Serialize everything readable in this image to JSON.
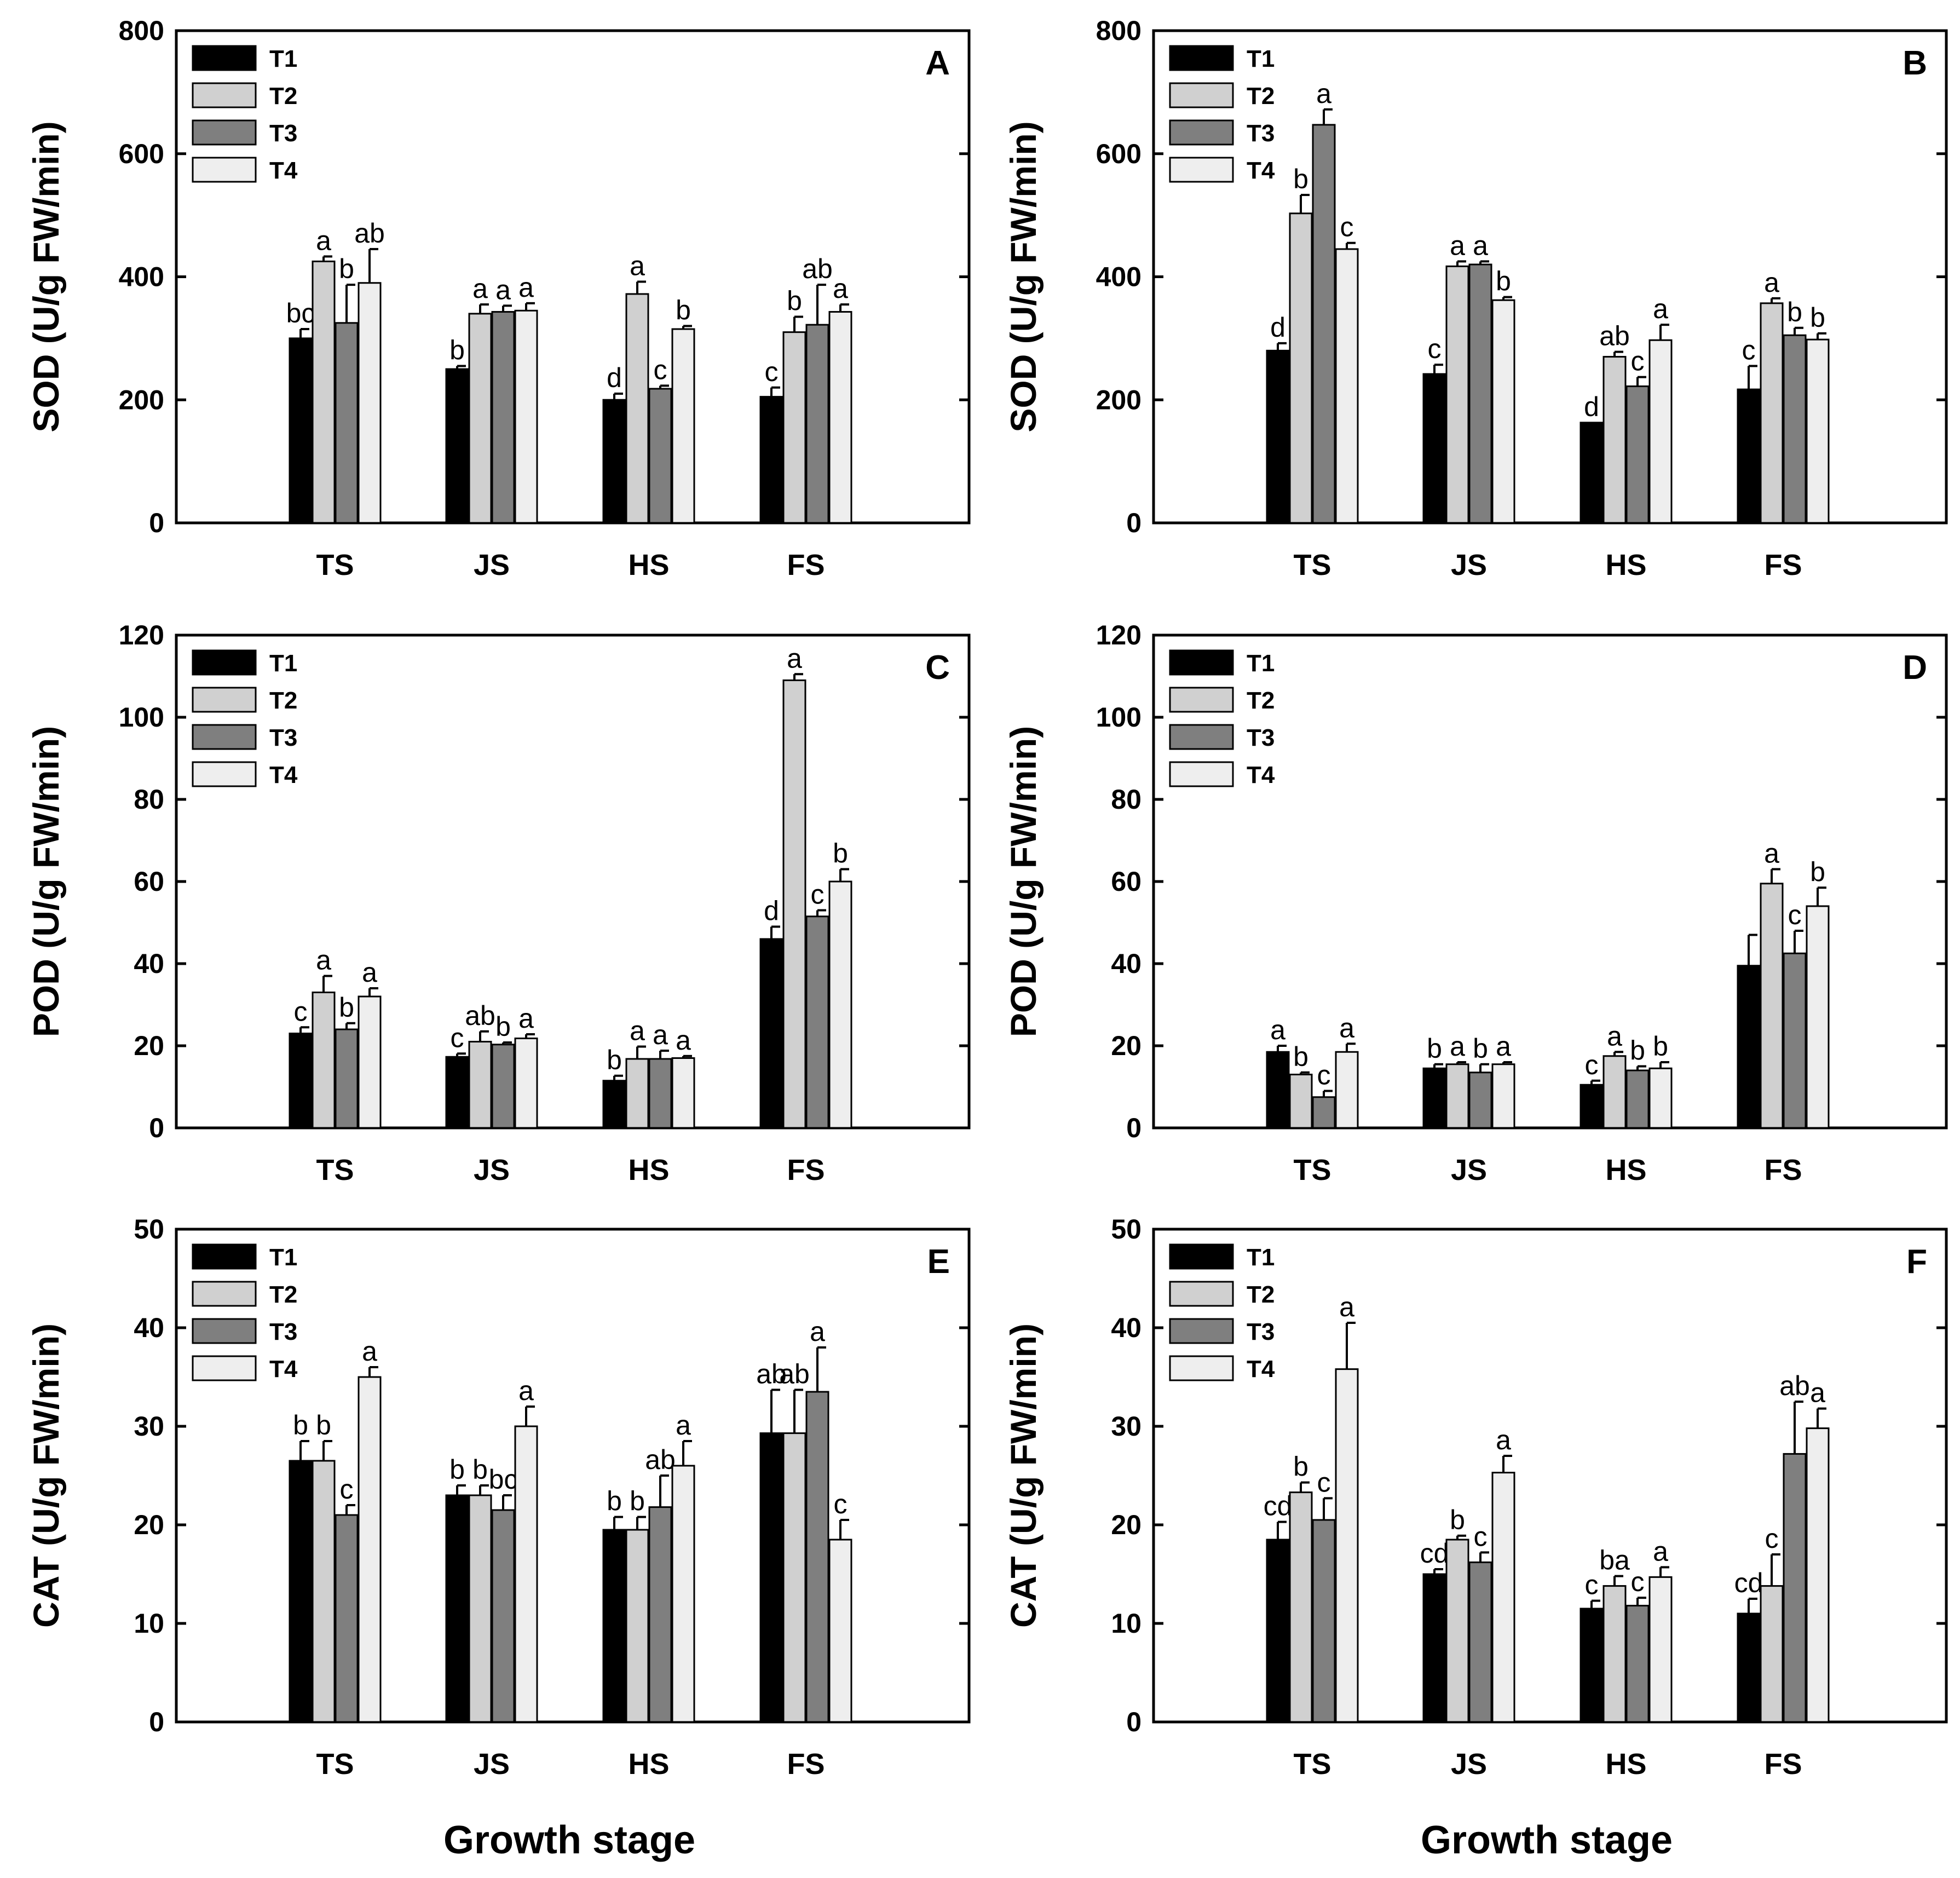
{
  "colors": {
    "T1": "#000000",
    "T2": "#d0d0d0",
    "T3": "#7f7f7f",
    "T4": "#eeeeee"
  },
  "x_axis_title": "Growth stage",
  "chart_data": [
    {
      "id": "A",
      "type": "bar",
      "panel_label": "A",
      "ylabel": "SOD (U/g FW/min)",
      "ylim": [
        0,
        800
      ],
      "yticks": [
        0,
        200,
        400,
        600,
        800
      ],
      "categories": [
        "TS",
        "JS",
        "HS",
        "FS"
      ],
      "series": [
        {
          "name": "T1",
          "values": [
            300,
            250,
            200,
            205
          ],
          "errors": [
            15,
            5,
            10,
            15
          ],
          "labels": [
            "bc",
            "b",
            "d",
            "c"
          ]
        },
        {
          "name": "T2",
          "values": [
            425,
            340,
            372,
            310
          ],
          "errors": [
            8,
            15,
            20,
            25
          ],
          "labels": [
            "a",
            "a",
            "a",
            "b"
          ]
        },
        {
          "name": "T3",
          "values": [
            325,
            343,
            218,
            322
          ],
          "errors": [
            62,
            10,
            5,
            65
          ],
          "labels": [
            "b",
            "a",
            "c",
            "ab"
          ]
        },
        {
          "name": "T4",
          "values": [
            390,
            345,
            315,
            343
          ],
          "errors": [
            55,
            12,
            5,
            12
          ],
          "labels": [
            "ab",
            "a",
            "b",
            "a"
          ]
        }
      ]
    },
    {
      "id": "B",
      "type": "bar",
      "panel_label": "B",
      "ylabel": "SOD (U/g FW/min)",
      "ylim": [
        0,
        800
      ],
      "yticks": [
        0,
        200,
        400,
        600,
        800
      ],
      "categories": [
        "TS",
        "JS",
        "HS",
        "FS"
      ],
      "series": [
        {
          "name": "T1",
          "values": [
            280,
            242,
            163,
            217
          ],
          "errors": [
            12,
            15,
            0,
            38
          ],
          "labels": [
            "d",
            "c",
            "d",
            "c"
          ]
        },
        {
          "name": "T2",
          "values": [
            503,
            417,
            270,
            357
          ],
          "errors": [
            30,
            8,
            8,
            8
          ],
          "labels": [
            "b",
            "a",
            "ab",
            "a"
          ]
        },
        {
          "name": "T3",
          "values": [
            647,
            420,
            222,
            305
          ],
          "errors": [
            25,
            5,
            15,
            12
          ],
          "labels": [
            "a",
            "a",
            "c",
            "b"
          ]
        },
        {
          "name": "T4",
          "values": [
            445,
            362,
            297,
            298
          ],
          "errors": [
            10,
            5,
            25,
            10
          ],
          "labels": [
            "c",
            "b",
            "a",
            "b"
          ]
        }
      ]
    },
    {
      "id": "C",
      "type": "bar",
      "panel_label": "C",
      "ylabel": "POD (U/g FW/min)",
      "ylim": [
        0,
        120
      ],
      "yticks": [
        0,
        20,
        40,
        60,
        80,
        100,
        120
      ],
      "categories": [
        "TS",
        "JS",
        "HS",
        "FS"
      ],
      "series": [
        {
          "name": "T1",
          "values": [
            23,
            17.3,
            11.5,
            46
          ],
          "errors": [
            1.5,
            0.8,
            1.2,
            3
          ],
          "labels": [
            "c",
            "c",
            "b",
            "d"
          ]
        },
        {
          "name": "T2",
          "values": [
            33,
            21,
            16.8,
            109
          ],
          "errors": [
            4,
            2.5,
            3,
            1.5
          ],
          "labels": [
            "a",
            "ab",
            "a",
            "a"
          ]
        },
        {
          "name": "T3",
          "values": [
            24,
            20.3,
            16.8,
            51.5
          ],
          "errors": [
            1.5,
            0.5,
            2,
            1.5
          ],
          "labels": [
            "b",
            "b",
            "a",
            "c"
          ]
        },
        {
          "name": "T4",
          "values": [
            32,
            21.8,
            17,
            60
          ],
          "errors": [
            2,
            1,
            0.5,
            3
          ],
          "labels": [
            "a",
            "a",
            "a",
            "b"
          ]
        }
      ]
    },
    {
      "id": "D",
      "type": "bar",
      "panel_label": "D",
      "ylabel": "POD (U/g FW/min)",
      "ylim": [
        0,
        120
      ],
      "yticks": [
        0,
        20,
        40,
        60,
        80,
        100,
        120
      ],
      "categories": [
        "TS",
        "JS",
        "HS",
        "FS"
      ],
      "series": [
        {
          "name": "T1",
          "values": [
            18.5,
            14.5,
            10.5,
            39.5
          ],
          "errors": [
            1.5,
            1,
            1,
            7.5
          ],
          "labels": [
            "a",
            "b",
            "c",
            ""
          ]
        },
        {
          "name": "T2",
          "values": [
            13,
            15.5,
            17.5,
            59.5
          ],
          "errors": [
            0.5,
            0.5,
            1,
            3.5
          ],
          "labels": [
            "b",
            "a",
            "a",
            "a"
          ]
        },
        {
          "name": "T3",
          "values": [
            7.5,
            13.5,
            14,
            42.5
          ],
          "errors": [
            1.5,
            2,
            1,
            5.5
          ],
          "labels": [
            "c",
            "b",
            "b",
            "c"
          ]
        },
        {
          "name": "T4",
          "values": [
            18.5,
            15.5,
            14.5,
            54
          ],
          "errors": [
            2,
            0.5,
            1.5,
            4.5
          ],
          "labels": [
            "a",
            "a",
            "b",
            "b"
          ]
        }
      ]
    },
    {
      "id": "E",
      "type": "bar",
      "panel_label": "E",
      "ylabel": "CAT (U/g FW/min)",
      "ylim": [
        0,
        50
      ],
      "yticks": [
        0,
        10,
        20,
        30,
        40,
        50
      ],
      "categories": [
        "TS",
        "JS",
        "HS",
        "FS"
      ],
      "series": [
        {
          "name": "T1",
          "values": [
            26.5,
            23,
            19.5,
            29.3
          ],
          "errors": [
            2,
            1,
            1.3,
            4.4
          ],
          "labels": [
            "b",
            "b",
            "b",
            "ab"
          ]
        },
        {
          "name": "T2",
          "values": [
            26.5,
            23,
            19.5,
            29.3
          ],
          "errors": [
            2,
            1,
            1.3,
            4.4
          ],
          "labels": [
            "b",
            "b",
            "b",
            "ab"
          ]
        },
        {
          "name": "T3",
          "values": [
            21,
            21.5,
            21.8,
            33.5
          ],
          "errors": [
            1,
            1.5,
            3.2,
            4.5
          ],
          "labels": [
            "c",
            "bc",
            "ab",
            "a"
          ]
        },
        {
          "name": "T4",
          "values": [
            35,
            30,
            26,
            18.5
          ],
          "errors": [
            1,
            2,
            2.5,
            2
          ],
          "labels": [
            "a",
            "a",
            "a",
            "c"
          ]
        }
      ]
    },
    {
      "id": "F",
      "type": "bar",
      "panel_label": "F",
      "ylabel": "CAT (U/g FW/min)",
      "ylim": [
        0,
        50
      ],
      "yticks": [
        0,
        10,
        20,
        30,
        40,
        50
      ],
      "categories": [
        "TS",
        "JS",
        "HS",
        "FS"
      ],
      "series": [
        {
          "name": "T1",
          "values": [
            18.5,
            15,
            11.5,
            11
          ],
          "errors": [
            1.8,
            0.5,
            0.8,
            1.5
          ],
          "labels": [
            "cd",
            "cd",
            "c",
            "cd"
          ]
        },
        {
          "name": "T2",
          "values": [
            23.3,
            18.5,
            13.8,
            13.8
          ],
          "errors": [
            1,
            0.4,
            1,
            3.2
          ],
          "labels": [
            "b",
            "b",
            "ba",
            "c"
          ]
        },
        {
          "name": "T3",
          "values": [
            20.5,
            16.2,
            11.8,
            27.2
          ],
          "errors": [
            2.2,
            1,
            0.8,
            5.3
          ],
          "labels": [
            "c",
            "c",
            "c",
            "ab"
          ]
        },
        {
          "name": "T4",
          "values": [
            35.8,
            25.3,
            14.7,
            29.8
          ],
          "errors": [
            4.7,
            1.7,
            1,
            2
          ],
          "labels": [
            "a",
            "a",
            "a",
            "a"
          ]
        }
      ]
    }
  ]
}
